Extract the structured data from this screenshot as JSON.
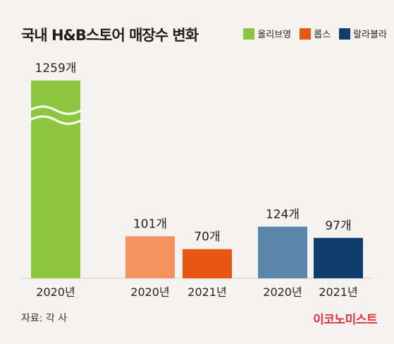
{
  "title": "국내 H&B스토어 매장수 변화",
  "legend": [
    {
      "label": "올리브영",
      "color": "#8dc63f"
    },
    {
      "label": "롭스",
      "color": "#e8570f"
    },
    {
      "label": "랄라블라",
      "color": "#0f3e6e"
    }
  ],
  "source": "자료: 각 사",
  "brand": "이코노미스트",
  "chart_data": {
    "type": "bar",
    "title": "국내 H&B스토어 매장수 변화",
    "unit": "개",
    "axis_break": true,
    "series": [
      {
        "name": "올리브영",
        "color": "#8dc63f",
        "points": [
          {
            "x": "2020년",
            "value": 1259,
            "label": "1259개",
            "color": "#8dc63f"
          }
        ]
      },
      {
        "name": "롭스",
        "color": "#e8570f",
        "points": [
          {
            "x": "2020년",
            "value": 101,
            "label": "101개",
            "color": "#f29360"
          },
          {
            "x": "2021년",
            "value": 70,
            "label": "70개",
            "color": "#e8570f"
          }
        ]
      },
      {
        "name": "랄라블라",
        "color": "#0f3e6e",
        "points": [
          {
            "x": "2020년",
            "value": 124,
            "label": "124개",
            "color": "#5d86ab"
          },
          {
            "x": "2021년",
            "value": 97,
            "label": "97개",
            "color": "#0f3e6e"
          }
        ]
      }
    ]
  }
}
